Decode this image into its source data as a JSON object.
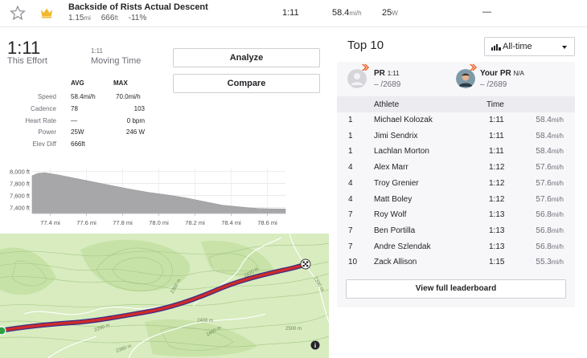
{
  "segment": {
    "name": "Backside of Rists Actual Descent",
    "distance": "1.15",
    "distance_unit": "mi",
    "elevation": "666",
    "elevation_unit": "ft",
    "grade": "-11%",
    "time": "1:11",
    "speed": "58.4",
    "speed_unit": "mi/h",
    "power": "25",
    "power_unit": "W",
    "hr": "—",
    "starred": false
  },
  "effort": {
    "time": "1:11",
    "time_label": "This Effort",
    "moving_time": "1:11",
    "moving_time_label": "Moving Time",
    "analyze_label": "Analyze",
    "compare_label": "Compare"
  },
  "stats": {
    "avg_header": "AVG",
    "max_header": "MAX",
    "rows": [
      {
        "label": "Speed",
        "avg": "58.4mi/h",
        "max": "70.0mi/h"
      },
      {
        "label": "Cadence",
        "avg": "78",
        "max": "103"
      },
      {
        "label": "Heart Rate",
        "avg": "—",
        "max": "0 bpm"
      },
      {
        "label": "Power",
        "avg": "25W",
        "max": "246 W"
      },
      {
        "label": "Elev Diff",
        "avg": "666ft",
        "max": ""
      }
    ]
  },
  "chart_data": {
    "type": "area",
    "title": "",
    "xlabel": "",
    "ylabel": "",
    "y_tick_labels": [
      "8,000 ft",
      "7,800 ft",
      "7,600 ft",
      "7,400 ft"
    ],
    "y_ticks": [
      8000,
      7800,
      7600,
      7400
    ],
    "x_tick_labels": [
      "77.4 mi",
      "77.6 mi",
      "77.8 mi",
      "78.0 mi",
      "78.2 mi",
      "78.4 mi",
      "78.6 mi"
    ],
    "x_ticks": [
      77.4,
      77.6,
      77.8,
      78.0,
      78.2,
      78.4,
      78.6
    ],
    "xlim": [
      77.3,
      78.7
    ],
    "ylim": [
      7300,
      8050
    ],
    "fill_color": "#a7a7a9",
    "x": [
      77.3,
      77.33,
      77.37,
      77.45,
      77.55,
      77.65,
      77.75,
      77.85,
      77.95,
      78.05,
      78.15,
      78.25,
      78.35,
      78.45,
      78.5,
      78.55,
      78.6,
      78.7
    ],
    "y": [
      7930,
      7970,
      7980,
      7940,
      7880,
      7820,
      7760,
      7700,
      7650,
      7610,
      7560,
      7500,
      7440,
      7410,
      7395,
      7385,
      7380,
      7375
    ]
  },
  "map": {
    "contour_labels": [
      "2360 m",
      "2290 m",
      "2400 m",
      "2380 m",
      "2500 m",
      "2410 m",
      "2460 m",
      "2390 m"
    ],
    "route_color": "#cf2a2a",
    "start_color": "#2ea143",
    "info_label": "i"
  },
  "top10": {
    "title": "Top 10",
    "filter_label": "All-time",
    "pr": {
      "title": "PR",
      "time": "1:11",
      "rank": "– /2689"
    },
    "your_pr": {
      "title": "Your PR",
      "value": "N/A",
      "rank": "– /2689"
    },
    "header": {
      "athlete": "Athlete",
      "time": "Time"
    },
    "rows": [
      {
        "rank": "1",
        "name": "Michael Kolozak",
        "time": "1:11",
        "speed": "58.4"
      },
      {
        "rank": "1",
        "name": "Jimi Sendrix",
        "time": "1:11",
        "speed": "58.4"
      },
      {
        "rank": "1",
        "name": "Lachlan Morton",
        "time": "1:11",
        "speed": "58.4"
      },
      {
        "rank": "4",
        "name": "Alex Marr",
        "time": "1:12",
        "speed": "57.6"
      },
      {
        "rank": "4",
        "name": "Troy Grenier",
        "time": "1:12",
        "speed": "57.6"
      },
      {
        "rank": "4",
        "name": "Matt Boley",
        "time": "1:12",
        "speed": "57.6"
      },
      {
        "rank": "7",
        "name": "Roy Wolf",
        "time": "1:13",
        "speed": "56.8"
      },
      {
        "rank": "7",
        "name": "Ben Portilla",
        "time": "1:13",
        "speed": "56.8"
      },
      {
        "rank": "7",
        "name": "Andre Szlendak",
        "time": "1:13",
        "speed": "56.8"
      },
      {
        "rank": "10",
        "name": "Zack Allison",
        "time": "1:15",
        "speed": "55.3"
      }
    ],
    "speed_unit": "mi/h",
    "full_leaderboard_label": "View full leaderboard"
  }
}
